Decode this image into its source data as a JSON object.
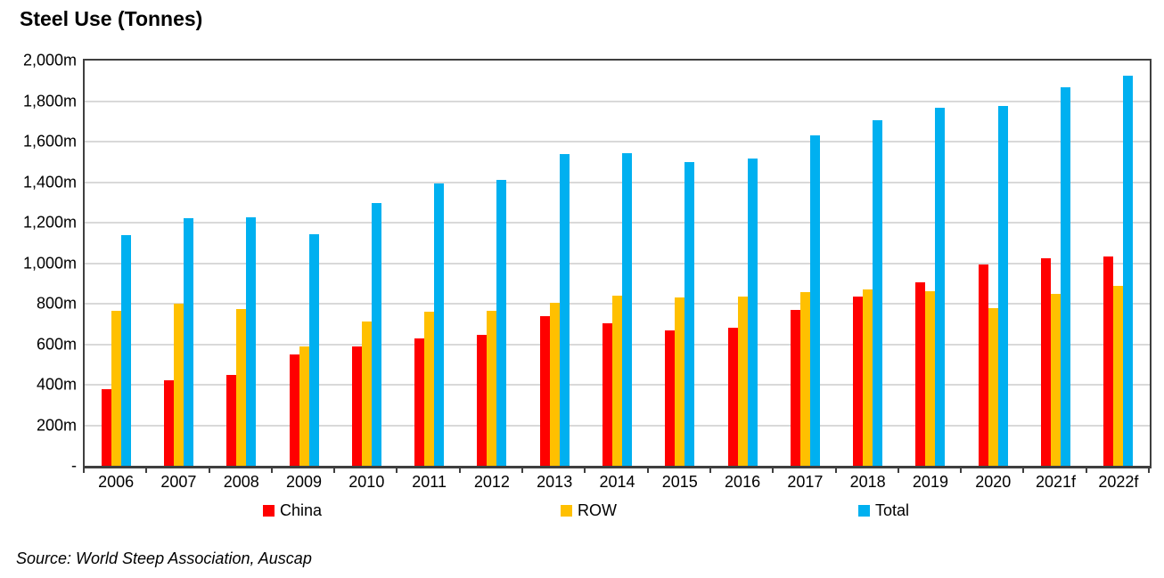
{
  "title": "Steel Use (Tonnes)",
  "source_note": "Source: World Steep Association, Auscap",
  "colors": {
    "china": "#FF0000",
    "row": "#FFC000",
    "total": "#00B0F0",
    "gridline": "#D9D9D9",
    "axis_border": "#3F3F3F"
  },
  "chart_data": {
    "type": "bar",
    "title": "Steel Use (Tonnes)",
    "categories": [
      "2006",
      "2007",
      "2008",
      "2009",
      "2010",
      "2011",
      "2012",
      "2013",
      "2014",
      "2015",
      "2016",
      "2017",
      "2018",
      "2019",
      "2020",
      "2021f",
      "2022f"
    ],
    "series": [
      {
        "name": "China",
        "color": "#FF0000",
        "values": [
          380,
          420,
          450,
          550,
          590,
          630,
          645,
          740,
          705,
          670,
          680,
          770,
          835,
          905,
          995,
          1025,
          1035
        ]
      },
      {
        "name": "ROW",
        "color": "#FFC000",
        "values": [
          765,
          800,
          775,
          590,
          710,
          760,
          765,
          805,
          840,
          830,
          835,
          855,
          870,
          860,
          780,
          850,
          890
        ]
      },
      {
        "name": "Total",
        "color": "#00B0F0",
        "values": [
          1140,
          1220,
          1225,
          1145,
          1295,
          1395,
          1410,
          1540,
          1545,
          1500,
          1515,
          1630,
          1705,
          1765,
          1775,
          1870,
          1925
        ]
      }
    ],
    "xlabel": "",
    "ylabel": "",
    "ylim": [
      0,
      2000
    ],
    "y_tick_step": 200,
    "y_ticks": [
      "2,000m",
      "1,800m",
      "1,600m",
      "1,400m",
      "1,200m",
      "1,000m",
      "800m",
      "600m",
      "400m",
      "200m",
      "-"
    ],
    "grid": true,
    "legend_position": "bottom",
    "unit": "m tonnes"
  }
}
